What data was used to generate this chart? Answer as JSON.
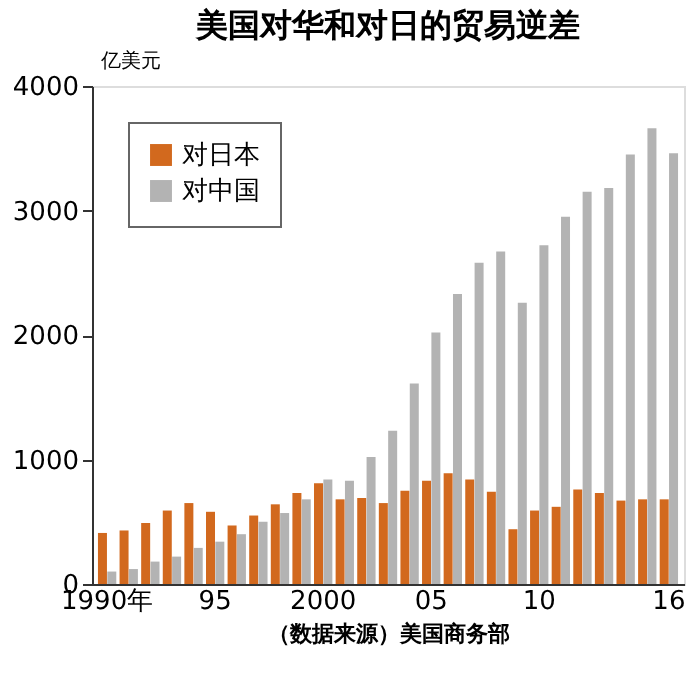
{
  "chart_data": {
    "type": "bar",
    "title": "美国对华和对日的贸易逆差",
    "ylabel": "亿美元",
    "categories": [
      "1990年",
      null,
      null,
      null,
      null,
      "95",
      null,
      null,
      null,
      null,
      "2000",
      null,
      null,
      null,
      null,
      "05",
      null,
      null,
      null,
      null,
      "10",
      null,
      null,
      null,
      null,
      null,
      "16"
    ],
    "series": [
      {
        "name": "对日本",
        "color": "#d2691e",
        "values": [
          410,
          430,
          490,
          590,
          650,
          580,
          470,
          550,
          640,
          730,
          810,
          680,
          690,
          650,
          750,
          830,
          890,
          840,
          740,
          440,
          590,
          620,
          760,
          730,
          670,
          680,
          680
        ]
      },
      {
        "name": "对中国",
        "color": "#b3b3b3",
        "values": [
          100,
          120,
          180,
          220,
          290,
          340,
          400,
          500,
          570,
          680,
          840,
          830,
          1020,
          1230,
          1610,
          2020,
          2330,
          2580,
          2670,
          2260,
          2720,
          2950,
          3150,
          3180,
          3450,
          3660,
          3460
        ]
      }
    ],
    "ylim": [
      0,
      4000
    ],
    "yticks": [
      0,
      1000,
      2000,
      3000,
      4000
    ],
    "grid": false,
    "legend": "top left",
    "annotations": [
      "（数据来源）美国商务部"
    ]
  }
}
